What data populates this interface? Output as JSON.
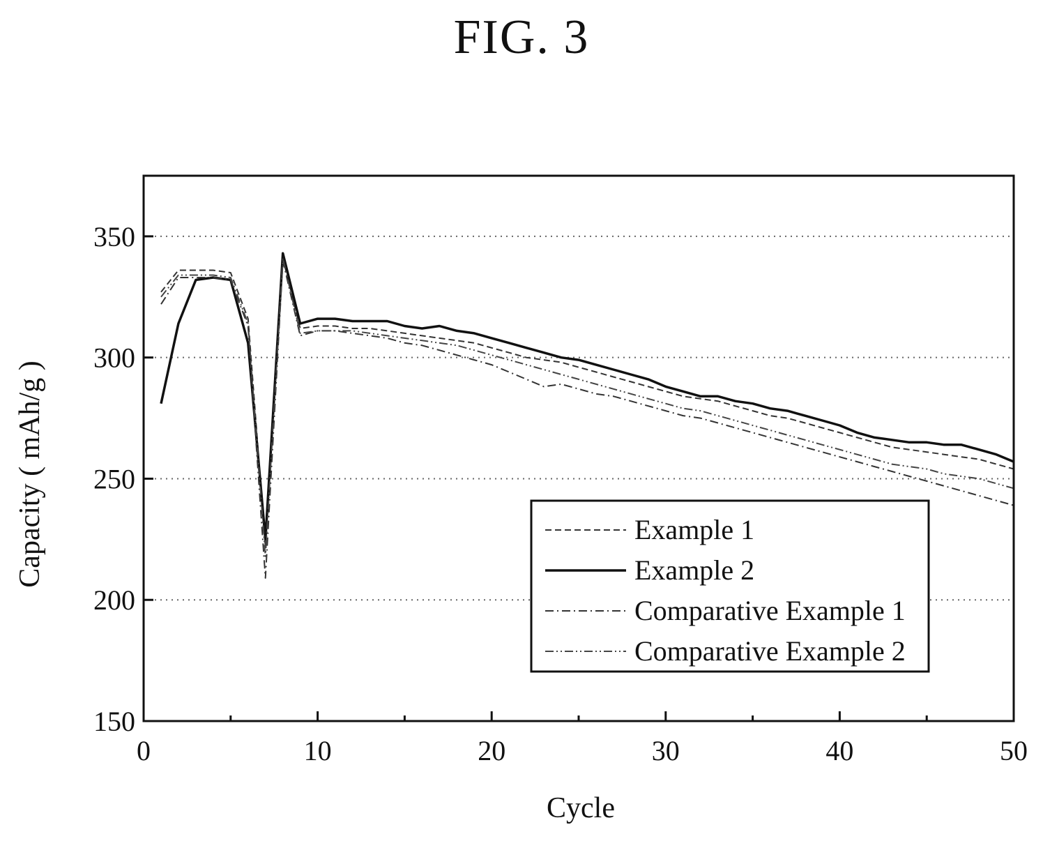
{
  "figure": {
    "title": "FIG. 3"
  },
  "chart_data": {
    "type": "line",
    "title": "FIG. 3",
    "xlabel": "Cycle",
    "ylabel": "Capacity ( mAh/g )",
    "xlim": [
      0,
      50
    ],
    "ylim": [
      150,
      375
    ],
    "xticks": [
      0,
      10,
      20,
      30,
      40,
      50
    ],
    "yticks": [
      150,
      200,
      250,
      300,
      350
    ],
    "xtick_labels": [
      "0",
      "10",
      "20",
      "30",
      "40",
      "50"
    ],
    "ytick_labels": [
      "150",
      "200",
      "250",
      "300",
      "350"
    ],
    "grid": "horizontal dotted",
    "legend_position": "bottom-right",
    "series": [
      {
        "name": "Example 1",
        "style": "dashed",
        "x": [
          1,
          2,
          3,
          4,
          5,
          6,
          7,
          8,
          9,
          10,
          11,
          12,
          13,
          14,
          15,
          16,
          17,
          18,
          19,
          20,
          21,
          22,
          23,
          24,
          25,
          26,
          27,
          28,
          29,
          30,
          31,
          32,
          33,
          34,
          35,
          36,
          37,
          38,
          39,
          40,
          41,
          42,
          43,
          44,
          45,
          46,
          47,
          48,
          49,
          50
        ],
        "y": [
          327,
          336,
          336,
          336,
          335,
          316,
          222,
          341,
          312,
          313,
          313,
          312,
          312,
          311,
          310,
          309,
          308,
          307,
          306,
          304,
          302,
          300,
          299,
          298,
          296,
          294,
          292,
          290,
          288,
          286,
          284,
          283,
          282,
          280,
          278,
          276,
          275,
          273,
          271,
          269,
          267,
          265,
          263,
          262,
          261,
          260,
          259,
          258,
          256,
          254
        ]
      },
      {
        "name": "Example 2",
        "style": "solid",
        "x": [
          1,
          2,
          3,
          4,
          5,
          6,
          7,
          8,
          9,
          10,
          11,
          12,
          13,
          14,
          15,
          16,
          17,
          18,
          19,
          20,
          21,
          22,
          23,
          24,
          25,
          26,
          27,
          28,
          29,
          30,
          31,
          32,
          33,
          34,
          35,
          36,
          37,
          38,
          39,
          40,
          41,
          42,
          43,
          44,
          45,
          46,
          47,
          48,
          49,
          50
        ],
        "y": [
          281,
          314,
          332,
          333,
          332,
          306,
          225,
          343,
          314,
          316,
          316,
          315,
          315,
          315,
          313,
          312,
          313,
          311,
          310,
          308,
          306,
          304,
          302,
          300,
          299,
          297,
          295,
          293,
          291,
          288,
          286,
          284,
          284,
          282,
          281,
          279,
          278,
          276,
          274,
          272,
          269,
          267,
          266,
          265,
          265,
          264,
          264,
          262,
          260,
          257
        ]
      },
      {
        "name": "Comparative Example 1",
        "style": "dash-dot",
        "x": [
          1,
          2,
          3,
          4,
          5,
          6,
          7,
          8,
          9,
          10,
          11,
          12,
          13,
          14,
          15,
          16,
          17,
          18,
          19,
          20,
          21,
          22,
          23,
          24,
          25,
          26,
          27,
          28,
          29,
          30,
          31,
          32,
          33,
          34,
          35,
          36,
          37,
          38,
          39,
          40,
          41,
          42,
          43,
          44,
          45,
          46,
          47,
          48,
          49,
          50
        ],
        "y": [
          322,
          333,
          333,
          333,
          332,
          313,
          209,
          340,
          309,
          311,
          311,
          310,
          309,
          308,
          306,
          305,
          303,
          301,
          299,
          297,
          294,
          291,
          288,
          289,
          287,
          285,
          284,
          282,
          280,
          278,
          276,
          275,
          273,
          271,
          269,
          267,
          265,
          263,
          261,
          259,
          257,
          255,
          253,
          251,
          249,
          247,
          245,
          243,
          241,
          239
        ]
      },
      {
        "name": "Comparative Example 2",
        "style": "dash-dot-dot",
        "x": [
          1,
          2,
          3,
          4,
          5,
          6,
          7,
          8,
          9,
          10,
          11,
          12,
          13,
          14,
          15,
          16,
          17,
          18,
          19,
          20,
          21,
          22,
          23,
          24,
          25,
          26,
          27,
          28,
          29,
          30,
          31,
          32,
          33,
          34,
          35,
          36,
          37,
          38,
          39,
          40,
          41,
          42,
          43,
          44,
          45,
          46,
          47,
          48,
          49,
          50
        ],
        "y": [
          325,
          334,
          334,
          334,
          333,
          314,
          218,
          341,
          310,
          311,
          311,
          311,
          310,
          309,
          308,
          307,
          306,
          305,
          303,
          301,
          299,
          297,
          295,
          293,
          291,
          289,
          287,
          285,
          283,
          281,
          279,
          278,
          276,
          274,
          272,
          270,
          268,
          266,
          264,
          262,
          260,
          258,
          256,
          255,
          254,
          252,
          251,
          250,
          248,
          246
        ]
      }
    ]
  }
}
